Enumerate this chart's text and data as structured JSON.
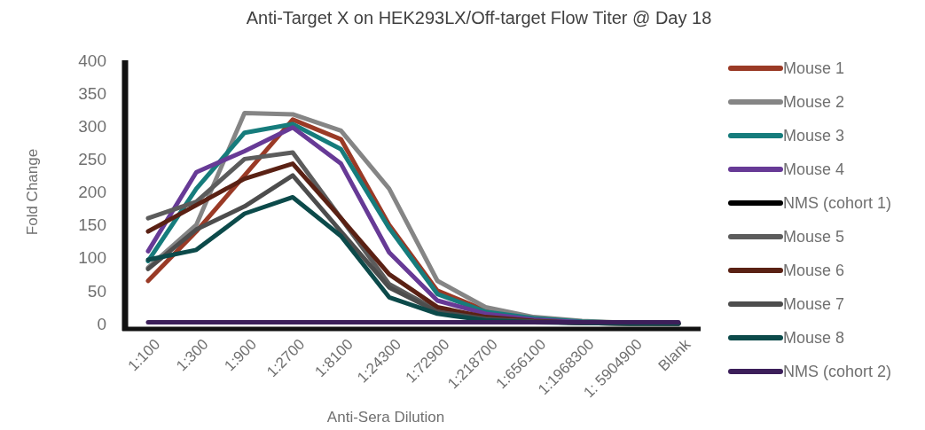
{
  "chart_data": {
    "type": "line",
    "title": "Anti-Target X on HEK293LX/Off-target Flow Titer @ Day 18",
    "xlabel": "Anti-Sera Dilution",
    "ylabel": "Fold Change",
    "categories": [
      "1:100",
      "1:300",
      "1:900",
      "1:2700",
      "1:8100",
      "1:24300",
      "1:72900",
      "1:218700",
      "1:656100",
      "1:1968300",
      "1: 5904900",
      "Blank"
    ],
    "ylim": [
      0,
      400
    ],
    "yticks": [
      0,
      50,
      100,
      150,
      200,
      250,
      300,
      350,
      400
    ],
    "grid": false,
    "legend": "right",
    "marker": "none",
    "line_style": "solid",
    "series": [
      {
        "name": "Mouse 1",
        "color": "#9a3a26",
        "values": [
          65,
          140,
          225,
          310,
          280,
          150,
          50,
          20,
          8,
          null,
          null,
          null
        ]
      },
      {
        "name": "Mouse 2",
        "color": "#858585",
        "values": [
          85,
          150,
          320,
          318,
          293,
          205,
          65,
          25,
          10,
          4,
          1,
          0
        ]
      },
      {
        "name": "Mouse 3",
        "color": "#167c7c",
        "values": [
          95,
          205,
          290,
          303,
          265,
          145,
          45,
          18,
          8,
          3,
          1,
          0
        ]
      },
      {
        "name": "Mouse 4",
        "color": "#673a96",
        "values": [
          110,
          230,
          262,
          298,
          243,
          108,
          35,
          15,
          6,
          2,
          1,
          0
        ]
      },
      {
        "name": "NMS (cohort 1)",
        "color": "#000000",
        "values": [
          null,
          null,
          null,
          null,
          null,
          null,
          null,
          null,
          null,
          null,
          null,
          null
        ]
      },
      {
        "name": "Mouse 5",
        "color": "#5c5c5c",
        "values": [
          160,
          185,
          250,
          260,
          160,
          60,
          20,
          8,
          3,
          1,
          0,
          0
        ]
      },
      {
        "name": "Mouse 6",
        "color": "#5a2114",
        "values": [
          140,
          180,
          220,
          243,
          160,
          75,
          25,
          10,
          4,
          1,
          0,
          0
        ]
      },
      {
        "name": "Mouse 7",
        "color": "#4d4d4d",
        "values": [
          83,
          143,
          178,
          225,
          140,
          55,
          18,
          7,
          3,
          1,
          0,
          0
        ]
      },
      {
        "name": "Mouse 8",
        "color": "#0c4a4a",
        "values": [
          97,
          112,
          167,
          192,
          133,
          40,
          15,
          5,
          2,
          1,
          0,
          0
        ]
      },
      {
        "name": "NMS (cohort 2)",
        "color": "#3c1f5a",
        "values": [
          2,
          2,
          2,
          2,
          2,
          2,
          2,
          2,
          2,
          2,
          2,
          2
        ]
      }
    ]
  }
}
